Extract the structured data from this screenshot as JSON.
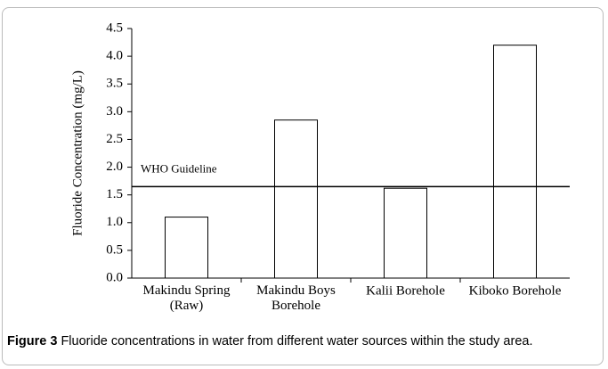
{
  "chart_data": {
    "type": "bar",
    "y_label": "Fluoride Concentration (mg/L)",
    "categories": [
      "Makindu Spring\n(Raw)",
      "Makindu Boys\nBorehole",
      "Kalii Borehole",
      "Kiboko Borehole"
    ],
    "values": [
      1.1,
      2.85,
      1.62,
      4.2
    ],
    "color": "#ffffff",
    "ylim": [
      0,
      4.5
    ],
    "yticks": [
      {
        "value": 0,
        "label": "0.0"
      },
      0.5,
      {
        "value": 1,
        "label": "1.0"
      },
      1.5,
      {
        "value": 2,
        "label": "2.0"
      },
      2.5,
      {
        "value": 3,
        "label": "3.0"
      },
      3.5,
      {
        "value": 4,
        "label": "4.0"
      },
      4.5
    ],
    "guideline": {
      "label": "WHO Guideline",
      "value": 1.65
    }
  },
  "caption": {
    "label": "Figure 3",
    "text": "Fluoride concentrations in water from different water sources within the study area."
  }
}
